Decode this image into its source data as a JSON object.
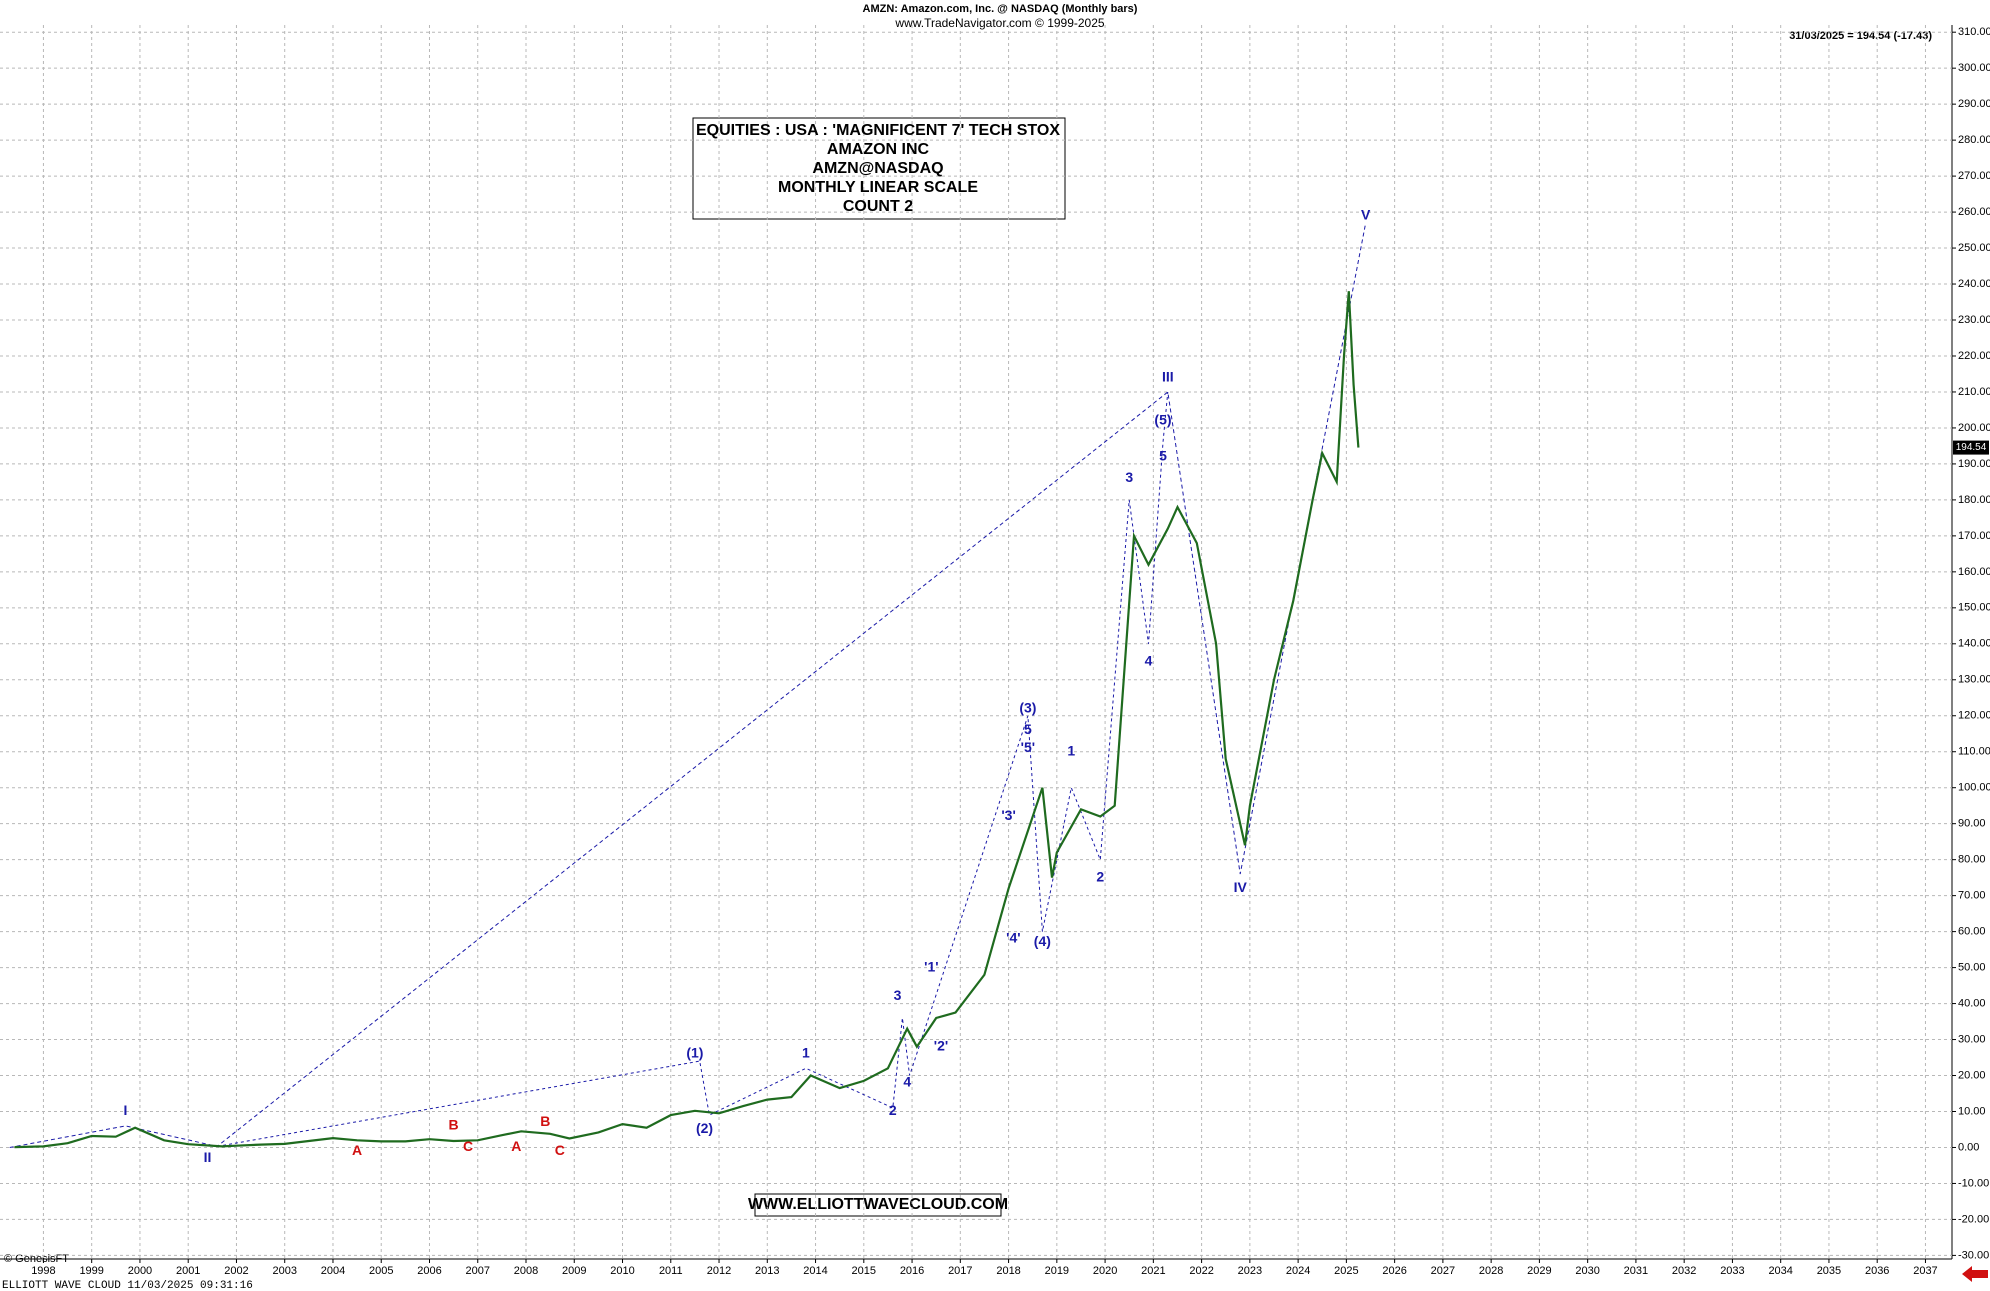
{
  "chart_data": {
    "type": "line",
    "title": "AMZN:  Amazon.com, Inc. @ NASDAQ  (Monthly bars)",
    "subtitle": "www.TradeNavigator.com © 1999-2025",
    "last_price_note": "31/03/2025 = 194.54 (-17.43)",
    "last_price_tag": "194.54",
    "info_box": [
      "EQUITIES : USA : 'MAGNIFICENT 7' TECH STOX",
      "AMAZON INC",
      "AMZN@NASDAQ",
      "MONTHLY LINEAR SCALE",
      "COUNT 2"
    ],
    "website": "WWW.ELLIOTTWAVECLOUD.COM",
    "copyright": "© GenesisFT",
    "footer": "ELLIOTT WAVE CLOUD   11/03/2025 09:31:16",
    "xlim": [
      1997.1,
      2037.55
    ],
    "ylim": [
      -31,
      312
    ],
    "grid": true,
    "xticks": [
      1998,
      1999,
      2000,
      2001,
      2002,
      2003,
      2004,
      2005,
      2006,
      2007,
      2008,
      2009,
      2010,
      2011,
      2012,
      2013,
      2014,
      2015,
      2016,
      2017,
      2018,
      2019,
      2020,
      2021,
      2022,
      2023,
      2024,
      2025,
      2026,
      2027,
      2028,
      2029,
      2030,
      2031,
      2032,
      2033,
      2034,
      2035,
      2036,
      2037
    ],
    "yticks": [
      {
        "value": -30,
        "label": "-30.00"
      },
      {
        "value": -20,
        "label": "-20.00"
      },
      {
        "value": -10,
        "label": "-10.00"
      },
      {
        "value": 0,
        "label": "0.00"
      },
      {
        "value": 10,
        "label": "10.00"
      },
      {
        "value": 20,
        "label": "20.00"
      },
      {
        "value": 30,
        "label": "30.00"
      },
      {
        "value": 40,
        "label": "40.00"
      },
      {
        "value": 50,
        "label": "50.00"
      },
      {
        "value": 60,
        "label": "60.00"
      },
      {
        "value": 70,
        "label": "70.00"
      },
      {
        "value": 80,
        "label": "80.00"
      },
      {
        "value": 90,
        "label": "90.00"
      },
      {
        "value": 100,
        "label": "100.00"
      },
      {
        "value": 110,
        "label": "110.00"
      },
      {
        "value": 120,
        "label": "120.00"
      },
      {
        "value": 130,
        "label": "130.00"
      },
      {
        "value": 140,
        "label": "140.00"
      },
      {
        "value": 150,
        "label": "150.00"
      },
      {
        "value": 160,
        "label": "160.00"
      },
      {
        "value": 170,
        "label": "170.00"
      },
      {
        "value": 180,
        "label": "180.00"
      },
      {
        "value": 190,
        "label": "190.00"
      },
      {
        "value": 200,
        "label": "200.00"
      },
      {
        "value": 210,
        "label": "210.00"
      },
      {
        "value": 220,
        "label": "220.00"
      },
      {
        "value": 230,
        "label": "230.00"
      },
      {
        "value": 240,
        "label": "240.00"
      },
      {
        "value": 250,
        "label": "250.00"
      },
      {
        "value": 260,
        "label": "260.00"
      },
      {
        "value": 270,
        "label": "270.00"
      },
      {
        "value": 280,
        "label": "280.00"
      },
      {
        "value": 290,
        "label": "290.00"
      },
      {
        "value": 300,
        "label": "300.00"
      },
      {
        "value": 310,
        "label": "310.00"
      }
    ],
    "price": {
      "color": "#1f6b1f",
      "x": [
        1997.4,
        1998.0,
        1998.5,
        1999.0,
        1999.5,
        1999.9,
        2000.5,
        2001.0,
        2001.7,
        2002.0,
        2002.5,
        2003.0,
        2003.5,
        2004.0,
        2004.5,
        2005.0,
        2005.5,
        2006.0,
        2006.5,
        2007.0,
        2007.5,
        2007.9,
        2008.5,
        2008.9,
        2009.5,
        2010.0,
        2010.5,
        2011.0,
        2011.5,
        2012.0,
        2012.5,
        2013.0,
        2013.5,
        2013.9,
        2014.5,
        2015.0,
        2015.5,
        2015.9,
        2016.1,
        2016.5,
        2016.9,
        2017.5,
        2018.0,
        2018.7,
        2018.9,
        2019.0,
        2019.5,
        2019.9,
        2020.2,
        2020.6,
        2020.9,
        2021.3,
        2021.5,
        2021.9,
        2022.3,
        2022.5,
        2022.9,
        2023.0,
        2023.5,
        2023.9,
        2024.3,
        2024.5,
        2024.8,
        2024.95,
        2025.05,
        2025.15,
        2025.25
      ],
      "values": [
        0.1,
        0.3,
        1.2,
        3.2,
        3.0,
        5.5,
        2.0,
        0.9,
        0.3,
        0.5,
        0.8,
        1.0,
        1.8,
        2.6,
        2.0,
        1.7,
        1.7,
        2.3,
        1.8,
        2.0,
        3.4,
        4.5,
        3.8,
        2.5,
        4.2,
        6.5,
        5.5,
        9.0,
        10.2,
        9.5,
        11.5,
        13.3,
        14.0,
        20.0,
        16.5,
        18.5,
        22.0,
        33.0,
        28.0,
        36.0,
        37.5,
        48.0,
        72.0,
        100.0,
        75.0,
        82.0,
        94.0,
        92.0,
        95.0,
        170.0,
        162.0,
        172.0,
        178.0,
        168.0,
        140.0,
        108.0,
        84.0,
        95.0,
        130.0,
        152.0,
        180.0,
        193.0,
        185.0,
        220.0,
        238.0,
        212.0,
        194.54
      ]
    },
    "wave": {
      "color": "#1a1aa8",
      "x": [
        1997.3,
        1999.7,
        2001.6,
        2021.3,
        2022.8,
        2025.4
      ],
      "values": [
        0,
        6,
        0.3,
        210,
        76,
        257
      ]
    },
    "wave_minor": {
      "color": "#1a1aa8",
      "x": [
        2001.6,
        2011.6,
        2011.8,
        2013.8,
        2015.6,
        2015.8,
        2015.95,
        2018.4,
        2018.7,
        2019.3,
        2019.9,
        2020.5,
        2020.9,
        2021.2,
        2021.3
      ],
      "values": [
        0.3,
        24,
        9,
        22,
        11,
        36,
        20,
        120,
        60,
        100,
        80,
        180,
        140,
        196,
        210
      ]
    },
    "annotations": [
      {
        "text": "I",
        "x": 1999.7,
        "y": 10,
        "color": "#1a1aa8"
      },
      {
        "text": "II",
        "x": 2001.4,
        "y": -3,
        "color": "#1a1aa8"
      },
      {
        "text": "III",
        "x": 2021.3,
        "y": 214,
        "color": "#1a1aa8"
      },
      {
        "text": "IV",
        "x": 2022.8,
        "y": 72,
        "color": "#1a1aa8"
      },
      {
        "text": "V",
        "x": 2025.4,
        "y": 259,
        "color": "#1a1aa8"
      },
      {
        "text": "(1)",
        "x": 2011.5,
        "y": 26,
        "color": "#1a1aa8"
      },
      {
        "text": "(2)",
        "x": 2011.7,
        "y": 5,
        "color": "#1a1aa8"
      },
      {
        "text": "(3)",
        "x": 2018.4,
        "y": 122,
        "color": "#1a1aa8"
      },
      {
        "text": "(4)",
        "x": 2018.7,
        "y": 57,
        "color": "#1a1aa8"
      },
      {
        "text": "(5)",
        "x": 2021.2,
        "y": 202,
        "color": "#1a1aa8"
      },
      {
        "text": "1",
        "x": 2013.8,
        "y": 26,
        "color": "#1a1aa8"
      },
      {
        "text": "2",
        "x": 2015.6,
        "y": 10,
        "color": "#1a1aa8"
      },
      {
        "text": "3",
        "x": 2015.7,
        "y": 42,
        "color": "#1a1aa8"
      },
      {
        "text": "4",
        "x": 2015.9,
        "y": 18,
        "color": "#1a1aa8"
      },
      {
        "text": "1",
        "x": 2019.3,
        "y": 110,
        "color": "#1a1aa8"
      },
      {
        "text": "2",
        "x": 2019.9,
        "y": 75,
        "color": "#1a1aa8"
      },
      {
        "text": "3",
        "x": 2020.5,
        "y": 186,
        "color": "#1a1aa8"
      },
      {
        "text": "4",
        "x": 2020.9,
        "y": 135,
        "color": "#1a1aa8"
      },
      {
        "text": "5",
        "x": 2021.2,
        "y": 192,
        "color": "#1a1aa8"
      },
      {
        "text": "'1'",
        "x": 2016.4,
        "y": 50,
        "color": "#1a1aa8"
      },
      {
        "text": "'2'",
        "x": 2016.6,
        "y": 28,
        "color": "#1a1aa8"
      },
      {
        "text": "'3'",
        "x": 2018.0,
        "y": 92,
        "color": "#1a1aa8"
      },
      {
        "text": "'4'",
        "x": 2018.1,
        "y": 58,
        "color": "#1a1aa8"
      },
      {
        "text": "'5'",
        "x": 2018.4,
        "y": 111,
        "color": "#1a1aa8"
      },
      {
        "text": "5",
        "x": 2018.4,
        "y": 116,
        "color": "#1a1aa8"
      },
      {
        "text": "A",
        "x": 2004.5,
        "y": -1,
        "color": "#d01010"
      },
      {
        "text": "B",
        "x": 2006.5,
        "y": 6,
        "color": "#d01010"
      },
      {
        "text": "C",
        "x": 2006.8,
        "y": 0,
        "color": "#d01010"
      },
      {
        "text": "A",
        "x": 2007.8,
        "y": 0,
        "color": "#d01010"
      },
      {
        "text": "B",
        "x": 2008.4,
        "y": 7,
        "color": "#d01010"
      },
      {
        "text": "C",
        "x": 2008.7,
        "y": -1,
        "color": "#d01010"
      }
    ]
  }
}
